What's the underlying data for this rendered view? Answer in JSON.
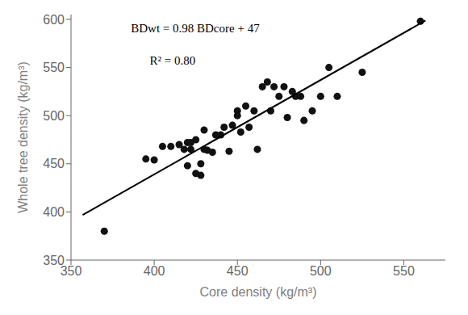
{
  "chart_data": {
    "type": "scatter",
    "xlabel": "Core density (kg/m³)",
    "ylabel": "Whole tree density (kg/m³)",
    "annotations": [
      "BDwt = 0.98 BDcore + 47",
      "R² = 0.80"
    ],
    "series": [
      {
        "type": "scatter",
        "color": "#111111",
        "marker": "circle",
        "x": [
          370,
          395,
          400,
          405,
          410,
          415,
          418,
          420,
          420,
          422,
          422,
          425,
          425,
          428,
          428,
          430,
          430,
          432,
          435,
          437,
          440,
          442,
          445,
          447,
          450,
          450,
          452,
          455,
          457,
          460,
          462,
          465,
          468,
          470,
          472,
          475,
          478,
          480,
          483,
          485,
          488,
          490,
          495,
          500,
          505,
          510,
          525,
          560
        ],
        "values": [
          380,
          455,
          454,
          468,
          468,
          470,
          465,
          472,
          448,
          472,
          465,
          440,
          475,
          450,
          438,
          485,
          465,
          464,
          462,
          480,
          480,
          488,
          463,
          490,
          505,
          500,
          483,
          510,
          488,
          505,
          465,
          530,
          535,
          505,
          530,
          520,
          530,
          498,
          525,
          520,
          520,
          495,
          505,
          520,
          550,
          520,
          545,
          598
        ]
      },
      {
        "type": "line",
        "color": "#000000",
        "line_style": "solid",
        "x": [
          357,
          563
        ],
        "values": [
          396.86,
          598.74
        ]
      }
    ],
    "xlim": [
      350,
      575
    ],
    "ylim": [
      350,
      605
    ],
    "xticks": [
      350,
      400,
      450,
      500,
      550
    ],
    "yticks": [
      350,
      400,
      450,
      500,
      550,
      600
    ],
    "grid": false
  }
}
